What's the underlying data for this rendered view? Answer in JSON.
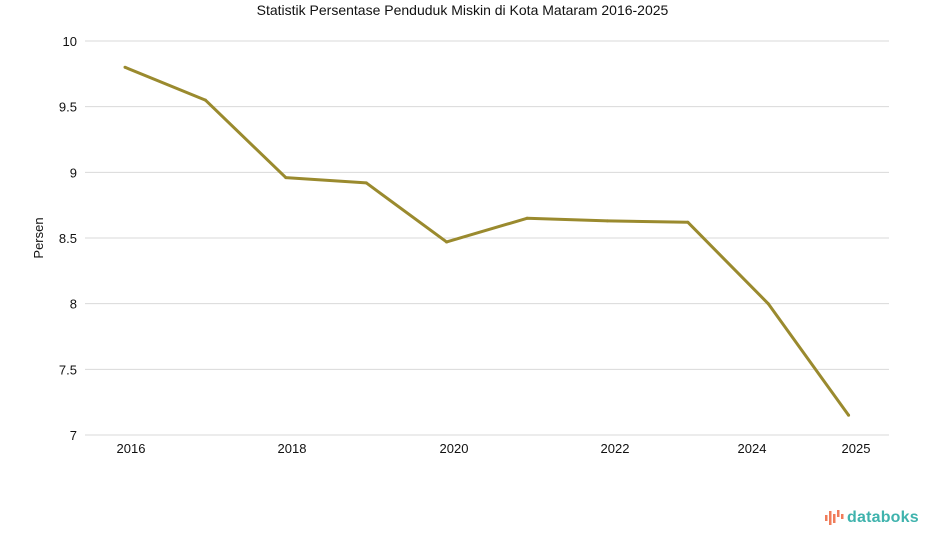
{
  "chart_data": {
    "type": "line",
    "title": "Statistik Persentase Penduduk Miskin di Kota Mataram 2016-2025",
    "xlabel": "",
    "ylabel": "Persen",
    "x": [
      2016,
      2017,
      2018,
      2019,
      2020,
      2021,
      2022,
      2023,
      2024,
      2025
    ],
    "series": [
      {
        "name": "Persentase Penduduk Miskin",
        "color": "#9a8a2e",
        "values": [
          9.8,
          9.55,
          8.96,
          8.92,
          8.47,
          8.65,
          8.63,
          8.62,
          8.0,
          7.15
        ]
      }
    ],
    "x_tick_labels": [
      "2016",
      "2018",
      "2020",
      "2022",
      "2024",
      "2025"
    ],
    "y_ticks": [
      7,
      7.5,
      8,
      8.5,
      9,
      9.5,
      10
    ],
    "y_tick_labels": [
      "7",
      "7.5",
      "8",
      "8.5",
      "9",
      "9.5",
      "10"
    ],
    "ylim": [
      7,
      10
    ],
    "grid": true,
    "legend": "none"
  },
  "branding": {
    "logo_text": "databoks"
  }
}
